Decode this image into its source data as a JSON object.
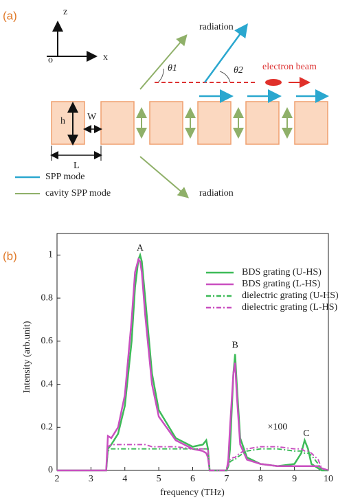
{
  "diagram": {
    "panel_label": "(a)",
    "axis_z": "z",
    "axis_x": "x",
    "origin": "o",
    "radiation_top": "radiation",
    "theta1": "θ1",
    "theta2": "θ2",
    "electron_beam": "electron beam",
    "h": "h",
    "w": "W",
    "l": "L",
    "radiation_bottom": "radiation",
    "legend_spp": "SPP mode",
    "legend_cavity": "cavity SPP mode"
  },
  "chart_data": {
    "type": "line",
    "panel_label": "(b)",
    "x_label": "frequency (THz)",
    "y_label": "Intensity (arb.unit)",
    "x": [
      2,
      3.45,
      3.5,
      3.6,
      3.8,
      4.0,
      4.2,
      4.3,
      4.4,
      4.45,
      4.5,
      4.6,
      4.8,
      5.0,
      5.5,
      6.0,
      6.3,
      6.4,
      6.45,
      6.5,
      7.0,
      7.05,
      7.1,
      7.2,
      7.25,
      7.3,
      7.4,
      7.6,
      8.0,
      8.5,
      9.0,
      9.2,
      9.3,
      9.4,
      9.5,
      9.7,
      9.8,
      10
    ],
    "series": [
      {
        "name": "BDS grating  (U-HS)",
        "color": "#3dbb58",
        "style": "solid",
        "values": [
          0,
          0,
          0.1,
          0.12,
          0.17,
          0.3,
          0.6,
          0.85,
          0.98,
          1.0,
          0.97,
          0.8,
          0.45,
          0.28,
          0.15,
          0.11,
          0.12,
          0.14,
          0.1,
          0,
          0,
          0.02,
          0.1,
          0.45,
          0.54,
          0.4,
          0.15,
          0.06,
          0.03,
          0.02,
          0.03,
          0.08,
          0.14,
          0.1,
          0.03,
          0.01,
          0,
          0
        ]
      },
      {
        "name": "BDS grating  (L-HS)",
        "color": "#c94fc0",
        "style": "solid",
        "values": [
          0,
          0,
          0.16,
          0.15,
          0.2,
          0.35,
          0.7,
          0.92,
          0.98,
          0.97,
          0.92,
          0.72,
          0.4,
          0.25,
          0.14,
          0.1,
          0.09,
          0.08,
          0.06,
          0,
          0,
          0.05,
          0.2,
          0.45,
          0.5,
          0.35,
          0.12,
          0.05,
          0.03,
          0.02,
          0.02,
          0.02,
          0.02,
          0.02,
          0.02,
          0.02,
          0.01,
          0
        ]
      },
      {
        "name": "dielectric grating  (U-HS)",
        "color": "#3dbb58",
        "style": "dashdot",
        "values": [
          0,
          0,
          0.09,
          0.1,
          0.1,
          0.1,
          0.1,
          0.1,
          0.1,
          0.1,
          0.1,
          0.1,
          0.1,
          0.1,
          0.1,
          0.1,
          0.1,
          0.1,
          0.1,
          0,
          0,
          0.02,
          0.04,
          0.05,
          0.05,
          0.06,
          0.07,
          0.09,
          0.1,
          0.1,
          0.09,
          0.09,
          0.08,
          0.08,
          0.07,
          0.03,
          0,
          0
        ]
      },
      {
        "name": "dielectric grating  (L-HS)",
        "color": "#c94fc0",
        "style": "dashdot",
        "values": [
          0,
          0,
          0.11,
          0.12,
          0.12,
          0.12,
          0.12,
          0.12,
          0.12,
          0.12,
          0.12,
          0.12,
          0.11,
          0.11,
          0.11,
          0.1,
          0.1,
          0.1,
          0.1,
          0,
          0,
          0.03,
          0.05,
          0.06,
          0.06,
          0.07,
          0.08,
          0.1,
          0.11,
          0.11,
          0.1,
          0.1,
          0.09,
          0.09,
          0.08,
          0.05,
          0.01,
          0
        ]
      }
    ],
    "xlim": [
      2,
      10
    ],
    "ylim": [
      0,
      1.1
    ],
    "xticks": [
      2,
      3,
      4,
      5,
      6,
      7,
      8,
      9,
      10
    ],
    "yticks": [
      0,
      0.2,
      0.4,
      0.6,
      0.8,
      1
    ],
    "annotations": [
      {
        "text": "A",
        "x": 4.45,
        "y": 1.03
      },
      {
        "text": "B",
        "x": 7.25,
        "y": 0.58
      },
      {
        "text": "C",
        "x": 9.35,
        "y": 0.17
      },
      {
        "text": "×100",
        "x": 8.5,
        "y": 0.2
      }
    ]
  }
}
